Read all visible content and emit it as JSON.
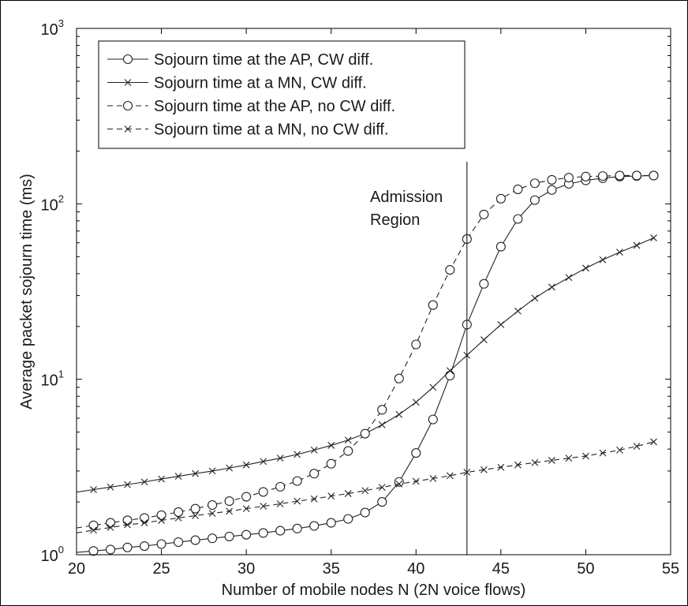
{
  "chart_data": {
    "type": "line",
    "title": "",
    "xlabel": "Number of mobile nodes N (2N voice flows)",
    "ylabel": "Average packet sojourn time (ms)",
    "xlim": [
      20,
      55
    ],
    "ylim": [
      1,
      1000
    ],
    "yscale": "log",
    "grid": false,
    "legend_position": "top-left",
    "x_ticks": [
      "20",
      "25",
      "30",
      "35",
      "40",
      "45",
      "50",
      "55"
    ],
    "y_ticks": [
      {
        "base": "10",
        "exp": "0"
      },
      {
        "base": "10",
        "exp": "1"
      },
      {
        "base": "10",
        "exp": "2"
      },
      {
        "base": "10",
        "exp": "3"
      }
    ],
    "annotation": {
      "lines": [
        "Admission",
        "Region"
      ],
      "x": 43
    },
    "series": [
      {
        "name": "Sojourn time at the AP, CW diff.",
        "marker": "circle",
        "dash": "solid",
        "x": [
          21,
          22,
          23,
          24,
          25,
          26,
          27,
          28,
          29,
          30,
          31,
          32,
          33,
          34,
          35,
          36,
          37,
          38,
          39,
          40,
          41,
          42,
          43,
          44,
          45,
          46,
          47,
          48,
          49,
          50,
          51,
          52,
          53,
          54
        ],
        "y": [
          1.05,
          1.07,
          1.1,
          1.12,
          1.15,
          1.18,
          1.21,
          1.24,
          1.27,
          1.3,
          1.33,
          1.37,
          1.41,
          1.46,
          1.52,
          1.6,
          1.74,
          2.0,
          2.6,
          3.8,
          5.9,
          10.5,
          20.5,
          35,
          57,
          82,
          105,
          120,
          130,
          136,
          140,
          143,
          144,
          145
        ]
      },
      {
        "name": "Sojourn time at a MN, CW diff.",
        "marker": "x",
        "dash": "solid",
        "x": [
          21,
          22,
          23,
          24,
          25,
          26,
          27,
          28,
          29,
          30,
          31,
          32,
          33,
          34,
          35,
          36,
          37,
          38,
          39,
          40,
          41,
          42,
          43,
          44,
          45,
          46,
          47,
          48,
          49,
          50,
          51,
          52,
          53,
          54
        ],
        "y": [
          2.35,
          2.43,
          2.51,
          2.6,
          2.7,
          2.8,
          2.9,
          3.0,
          3.12,
          3.25,
          3.4,
          3.55,
          3.73,
          3.95,
          4.2,
          4.5,
          4.9,
          5.5,
          6.3,
          7.4,
          9.0,
          11.2,
          13.7,
          16.8,
          20.5,
          24.5,
          29,
          33.5,
          38,
          43,
          48,
          53,
          58,
          64
        ]
      },
      {
        "name": "Sojourn time at the AP, no CW diff.",
        "marker": "circle",
        "dash": "dashed",
        "x": [
          21,
          22,
          23,
          24,
          25,
          26,
          27,
          28,
          29,
          30,
          31,
          32,
          33,
          34,
          35,
          36,
          37,
          38,
          39,
          40,
          41,
          42,
          43,
          44,
          45,
          46,
          47,
          48,
          49,
          50,
          51,
          52,
          53,
          54
        ],
        "y": [
          1.47,
          1.52,
          1.57,
          1.62,
          1.68,
          1.75,
          1.83,
          1.92,
          2.02,
          2.14,
          2.28,
          2.44,
          2.63,
          2.9,
          3.3,
          3.9,
          4.9,
          6.7,
          10.1,
          15.8,
          26.5,
          42,
          63,
          87,
          107,
          121,
          131,
          137,
          141,
          143,
          144,
          145,
          145,
          145
        ]
      },
      {
        "name": "Sojourn time at a MN, no CW diff.",
        "marker": "x",
        "dash": "dashed",
        "x": [
          21,
          22,
          23,
          24,
          25,
          26,
          27,
          28,
          29,
          30,
          31,
          32,
          33,
          34,
          35,
          36,
          37,
          38,
          39,
          40,
          41,
          42,
          43,
          44,
          45,
          46,
          47,
          48,
          49,
          50,
          51,
          52,
          53,
          54
        ],
        "y": [
          1.38,
          1.43,
          1.48,
          1.52,
          1.57,
          1.62,
          1.67,
          1.72,
          1.77,
          1.83,
          1.89,
          1.95,
          2.02,
          2.08,
          2.16,
          2.23,
          2.32,
          2.42,
          2.53,
          2.62,
          2.72,
          2.82,
          2.95,
          3.05,
          3.15,
          3.25,
          3.35,
          3.45,
          3.55,
          3.65,
          3.8,
          3.95,
          4.15,
          4.4
        ]
      }
    ]
  }
}
